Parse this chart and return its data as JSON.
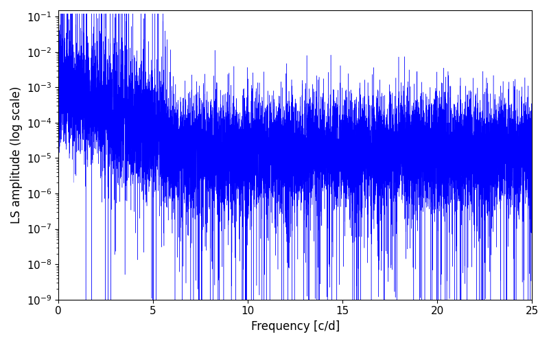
{
  "xlabel": "Frequency [c/d]",
  "ylabel": "LS amplitude (log scale)",
  "xlim": [
    0,
    25
  ],
  "ylim_log_min": -9,
  "ylim_top": 0.15,
  "line_color": "#0000ff",
  "line_width": 0.3,
  "figsize": [
    8.0,
    5.0
  ],
  "dpi": 100,
  "n_points": 12000,
  "seed": 7,
  "freq_max": 25.0,
  "background_color": "#ffffff",
  "tick_labelsize": 11,
  "axis_labelsize": 12
}
